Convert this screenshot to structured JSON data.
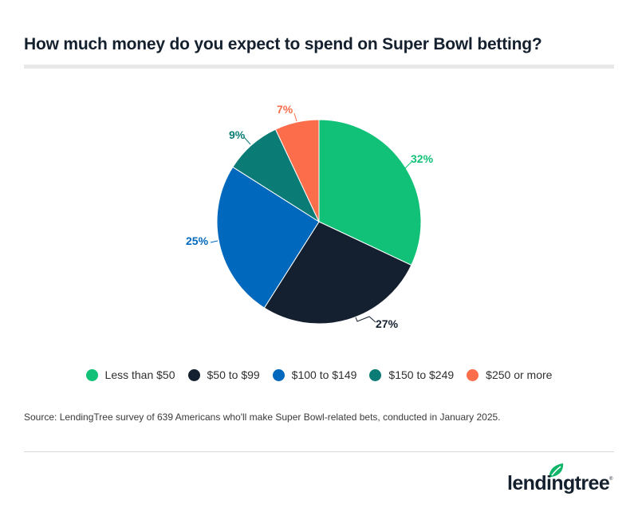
{
  "header": {
    "title": "How much money do you expect to spend on Super Bowl betting?"
  },
  "chart_data": {
    "type": "pie",
    "title": "How much money do you expect to spend on Super Bowl betting?",
    "start_angle_deg": 0,
    "direction": "clockwise",
    "center": [
      400,
      278
    ],
    "radius": 128,
    "categories": [
      "Less than $50",
      "$50 to $99",
      "$100 to $149",
      "$150 to $249",
      "$250 or more"
    ],
    "values": [
      32,
      27,
      25,
      9,
      7
    ],
    "value_labels": [
      "32%",
      "27%",
      "25%",
      "9%",
      "7%"
    ],
    "colors": [
      "#10c177",
      "#14202f",
      "#0068bd",
      "#0b7b75",
      "#fb6d4b"
    ],
    "legend_position": "bottom"
  },
  "slices": [
    {
      "label": "Less than $50",
      "value_label": "32%",
      "color": "#10c177"
    },
    {
      "label": "$50 to $99",
      "value_label": "27%",
      "color": "#14202f"
    },
    {
      "label": "$100 to $149",
      "value_label": "25%",
      "color": "#0068bd"
    },
    {
      "label": "$150 to $249",
      "value_label": "9%",
      "color": "#0b7b75"
    },
    {
      "label": "$250 or more",
      "value_label": "7%",
      "color": "#fb6d4b"
    }
  ],
  "legend": {
    "items": [
      {
        "label": "Less than $50",
        "color": "#10c177"
      },
      {
        "label": "$50 to $99",
        "color": "#14202f"
      },
      {
        "label": "$100 to $149",
        "color": "#0068bd"
      },
      {
        "label": "$150 to $249",
        "color": "#0b7b75"
      },
      {
        "label": "$250 or more",
        "color": "#fb6d4b"
      }
    ]
  },
  "footer": {
    "source": "Source: LendingTree survey of 639 Americans who'll make Super Bowl-related bets, conducted in January 2025.",
    "logo_text": "lendingtree",
    "logo_color": "#15202e",
    "leaf_color": "#10b56a"
  }
}
